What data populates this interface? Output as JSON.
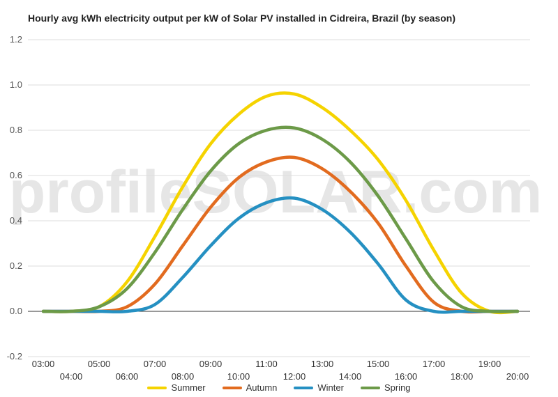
{
  "chart_data": {
    "type": "line",
    "title": "Hourly avg kWh electricity output per kW of Solar PV installed in Cidreira, Brazil (by season)",
    "watermark": "profileSOLAR.com",
    "xlabel": "",
    "ylabel": "",
    "ylim": [
      -0.2,
      1.2
    ],
    "yticks": [
      "1.2",
      "1.0",
      "0.8",
      "0.6",
      "0.4",
      "0.2",
      "0.0",
      "-0.2"
    ],
    "x": [
      "03:00",
      "04:00",
      "05:00",
      "06:00",
      "07:00",
      "08:00",
      "09:00",
      "10:00",
      "11:00",
      "12:00",
      "13:00",
      "14:00",
      "15:00",
      "16:00",
      "17:00",
      "18:00",
      "19:00",
      "20:00"
    ],
    "series": [
      {
        "name": "Summer",
        "color": "#f5d300",
        "values": [
          0.0,
          0.0,
          0.02,
          0.13,
          0.33,
          0.55,
          0.74,
          0.87,
          0.95,
          0.96,
          0.9,
          0.8,
          0.67,
          0.49,
          0.27,
          0.08,
          0.0,
          0.0
        ]
      },
      {
        "name": "Autumn",
        "color": "#e26b1f",
        "values": [
          0.0,
          0.0,
          0.0,
          0.02,
          0.12,
          0.29,
          0.46,
          0.59,
          0.66,
          0.68,
          0.63,
          0.53,
          0.39,
          0.2,
          0.04,
          0.0,
          0.0,
          0.0
        ]
      },
      {
        "name": "Winter",
        "color": "#2590c2",
        "values": [
          0.0,
          0.0,
          0.0,
          0.0,
          0.03,
          0.15,
          0.29,
          0.41,
          0.48,
          0.5,
          0.45,
          0.35,
          0.21,
          0.05,
          0.0,
          0.0,
          0.0,
          0.0
        ]
      },
      {
        "name": "Spring",
        "color": "#6c9a48",
        "values": [
          0.0,
          0.0,
          0.02,
          0.1,
          0.26,
          0.45,
          0.62,
          0.74,
          0.8,
          0.81,
          0.76,
          0.66,
          0.51,
          0.32,
          0.13,
          0.02,
          0.0,
          0.0
        ]
      }
    ],
    "grid": true,
    "legend": "bottom-center"
  }
}
